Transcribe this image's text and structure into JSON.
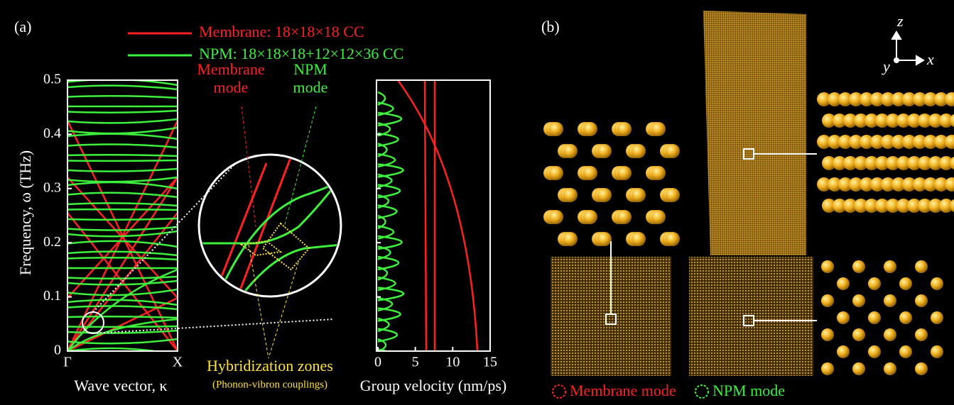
{
  "panel_a": {
    "label": "(a)",
    "legend": [
      {
        "name": "Membrane: 18×18×18 CC",
        "color": "#ff2020"
      },
      {
        "name": "NPM: 18×18×18+12×12×36 CC",
        "color": "#3df03d"
      }
    ],
    "dispersion": {
      "ylabel": "Frequency, ω (THz)",
      "xlabel": "Wave vector, κ",
      "xticks": [
        "Γ",
        "X"
      ],
      "ylim": [
        0,
        0.5
      ],
      "yticks": [
        0,
        0.1,
        0.2,
        0.3,
        0.4,
        0.5
      ]
    },
    "velocity": {
      "xlabel": "Group velocity (nm/ps)",
      "xlim": [
        0,
        15
      ],
      "xticks": [
        0,
        5,
        10,
        15
      ]
    },
    "annotations": {
      "membrane_mode": "Membrane\nmode",
      "npm_mode": "NPM\nmode",
      "hybridization": "Hybridization zones",
      "hybridization_note": "(Phonon-vibron couplings)"
    }
  },
  "panel_b": {
    "label": "(b)",
    "axes": {
      "z": "z",
      "x": "x",
      "y": "y"
    },
    "legend": [
      {
        "name": "Membrane mode",
        "color": "#ff2020"
      },
      {
        "name": "NPM mode",
        "color": "#3df03d"
      }
    ]
  }
}
